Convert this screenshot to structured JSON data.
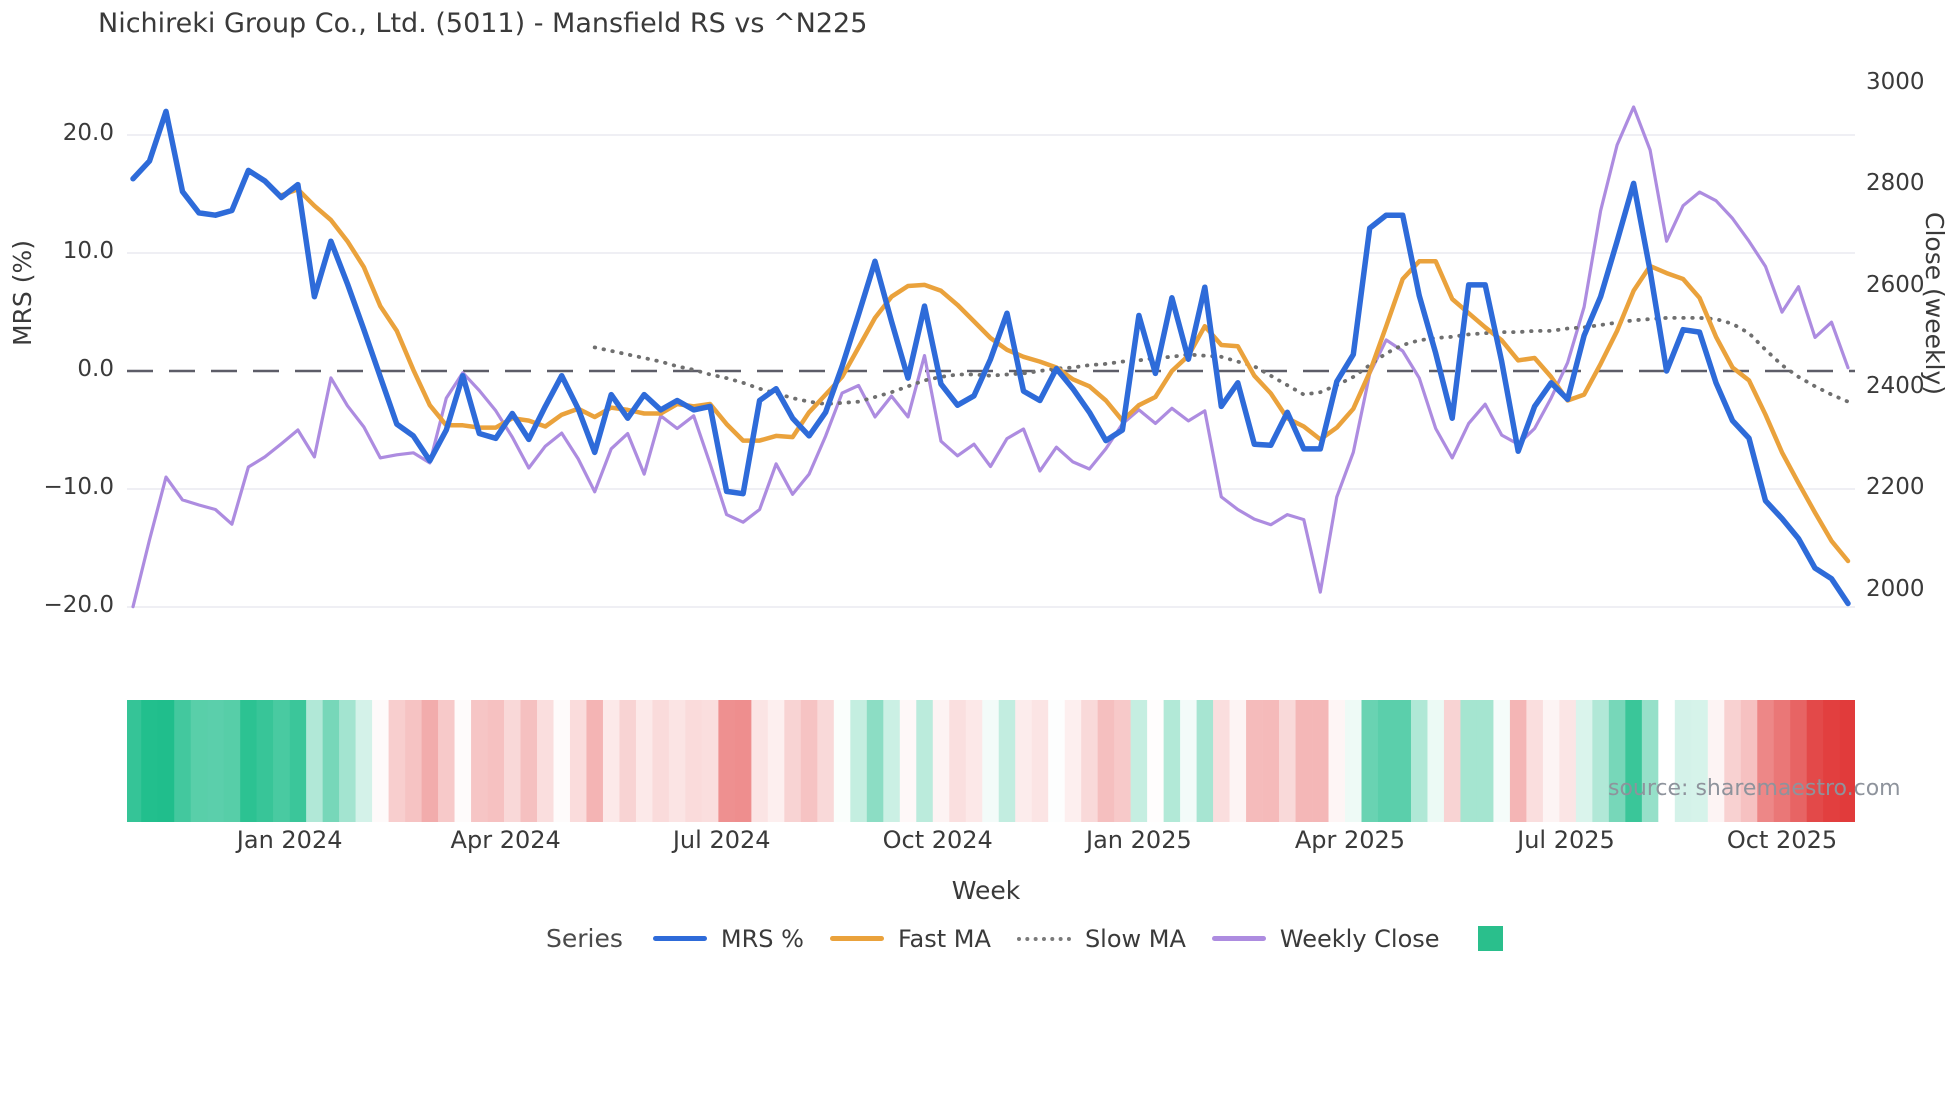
{
  "source_note": "source: sharemaestro.com",
  "legend": {
    "title": "Series",
    "items": [
      {
        "label": "MRS %",
        "swatch": "line",
        "color": "#2e6bd9"
      },
      {
        "label": "Fast MA",
        "swatch": "line",
        "color": "#eaa23c"
      },
      {
        "label": "Slow MA",
        "swatch": "dotted",
        "color": "#7a7a7a"
      },
      {
        "label": "Weekly Close",
        "swatch": "line",
        "color": "#ad8ce0"
      },
      {
        "label": "",
        "swatch": "square",
        "color": "#2abf8c"
      }
    ]
  },
  "chart_data": {
    "type": "line",
    "title": "Nichireki Group Co., Ltd. (5011) - Mansfield RS vs ^N225",
    "x_axis": {
      "label": "Week",
      "ticks": [
        {
          "label": "Jan 2024",
          "week": 9.5
        },
        {
          "label": "Apr 2024",
          "week": 22.6
        },
        {
          "label": "Jul 2024",
          "week": 35.7
        },
        {
          "label": "Oct 2024",
          "week": 48.8
        },
        {
          "label": "Jan 2025",
          "week": 61.0
        },
        {
          "label": "Apr 2025",
          "week": 73.8
        },
        {
          "label": "Jul 2025",
          "week": 86.9
        },
        {
          "label": "Oct 2025",
          "week": 100.0
        }
      ],
      "weeks_total": 105
    },
    "y_left": {
      "label": "MRS (%)",
      "ticks": [
        {
          "label": "20.0",
          "value": 20
        },
        {
          "label": "10.0",
          "value": 10
        },
        {
          "label": "0.0",
          "value": 0
        },
        {
          "label": "−10.0",
          "value": -10
        },
        {
          "label": "−20.0",
          "value": -20
        }
      ],
      "grid_values": [
        20,
        10,
        -10,
        -20
      ],
      "zero_line": 0.0
    },
    "y_right": {
      "label": "Close (weekly)",
      "ticks": [
        {
          "label": "3000",
          "value": 3000
        },
        {
          "label": "2800",
          "value": 2800
        },
        {
          "label": "2600",
          "value": 2600
        },
        {
          "label": "2400",
          "value": 2400
        },
        {
          "label": "2200",
          "value": 2200
        },
        {
          "label": "2000",
          "value": 2000
        }
      ]
    },
    "series": [
      {
        "name": "MRS %",
        "axis": "left",
        "color": "#2e6bd9",
        "style": "solid",
        "width": 5.5,
        "z": 4,
        "start_week": 0,
        "values": [
          16.3,
          17.8,
          22,
          15.2,
          13.4,
          13.2,
          13.6,
          17,
          16.1,
          14.7,
          15.8,
          6.3,
          11,
          7.4,
          3.5,
          -0.5,
          -4.5,
          -5.5,
          -7.6,
          -5,
          -0.4,
          -5.3,
          -5.7,
          -3.6,
          -5.8,
          -3,
          -0.4,
          -3.2,
          -6.9,
          -2,
          -4,
          -2,
          -3.3,
          -2.5,
          -3.3,
          -3,
          -10.2,
          -10.4,
          -2.5,
          -1.5,
          -4,
          -5.5,
          -3.5,
          0.4,
          4.8,
          9.3,
          4.2,
          -0.6,
          5.5,
          -1.1,
          -2.9,
          -2.1,
          1,
          4.9,
          -1.7,
          -2.5,
          0.2,
          -1.5,
          -3.5,
          -5.9,
          -5,
          4.7,
          -0.2,
          6.2,
          1,
          7.1,
          -3,
          -1,
          -6.2,
          -6.3,
          -3.5,
          -6.6,
          -6.6,
          -0.9,
          1.4,
          12.1,
          13.2,
          13.2,
          6.4,
          1.5,
          -4,
          7.3,
          7.3,
          0.8,
          -6.8,
          -3,
          -1,
          -2.4,
          3,
          6.3,
          11,
          15.9,
          8.5,
          0,
          3.5,
          3.3,
          -1,
          -4.2,
          -5.7,
          -11,
          -12.5,
          -14.2,
          -16.7,
          -17.6,
          -19.7
        ]
      },
      {
        "name": "Fast MA",
        "axis": "left",
        "color": "#eaa23c",
        "style": "solid",
        "width": 4.5,
        "z": 3,
        "start_week": 9,
        "values": [
          14.9,
          15.4,
          14,
          12.8,
          11,
          8.8,
          5.5,
          3.4,
          0.1,
          -2.9,
          -4.6,
          -4.6,
          -4.8,
          -4.8,
          -4,
          -4.2,
          -4.7,
          -3.7,
          -3.2,
          -3.9,
          -3.1,
          -3.3,
          -3.6,
          -3.6,
          -2.8,
          -3,
          -2.8,
          -4.5,
          -5.9,
          -5.9,
          -5.5,
          -5.6,
          -3.5,
          -2,
          -0.5,
          2,
          4.5,
          6.3,
          7.2,
          7.3,
          6.8,
          5.6,
          4.2,
          2.8,
          1.8,
          1.2,
          0.8,
          0.3,
          -0.7,
          -1.3,
          -2.5,
          -4.2,
          -2.9,
          -2.2,
          0,
          1.3,
          3.8,
          2.2,
          2.1,
          -0.4,
          -1.9,
          -4,
          -4.7,
          -5.8,
          -4.8,
          -3.2,
          -0.1,
          3.8,
          7.8,
          9.3,
          9.3,
          6.1,
          4.9,
          3.7,
          2.6,
          0.9,
          1.1,
          -0.5,
          -2.5,
          -2,
          0.6,
          3.4,
          6.8,
          8.9,
          8.3,
          7.8,
          6.2,
          2.9,
          0.3,
          -0.8,
          -3.7,
          -6.9,
          -9.5,
          -12,
          -14.4,
          -16.1
        ]
      },
      {
        "name": "Slow MA",
        "axis": "left",
        "color": "#6f6f6f",
        "style": "dotted",
        "width": 3.8,
        "z": 2,
        "start_week": 28,
        "values": [
          2,
          1.7,
          1.4,
          1.1,
          0.8,
          0.4,
          0.1,
          -0.3,
          -0.6,
          -1,
          -1.5,
          -1.9,
          -2.3,
          -2.6,
          -2.8,
          -2.7,
          -2.6,
          -2.2,
          -1.8,
          -1.3,
          -0.8,
          -0.5,
          -0.3,
          -0.3,
          -0.4,
          -0.3,
          -0.2,
          0,
          0.2,
          0.3,
          0.5,
          0.6,
          0.8,
          0.9,
          1.1,
          1.2,
          1.4,
          1.3,
          1.2,
          0.8,
          0.4,
          -0.4,
          -1.2,
          -2,
          -1.8,
          -1.2,
          -0.5,
          0.5,
          1.5,
          2.2,
          2.6,
          2.8,
          2.9,
          3.1,
          3.2,
          3.3,
          3.3,
          3.4,
          3.4,
          3.6,
          3.7,
          3.9,
          4.1,
          4.3,
          4.4,
          4.5,
          4.5,
          4.5,
          4.4,
          4,
          3.2,
          1.8,
          0.5,
          -0.5,
          -1.3,
          -2,
          -2.6
        ]
      },
      {
        "name": "Weekly Close",
        "axis": "right",
        "color": "#ad8ce0",
        "style": "solid",
        "width": 3.2,
        "z": 1,
        "start_week": 0,
        "values": [
          1968,
          2100,
          2224,
          2179,
          2169,
          2160,
          2131,
          2244,
          2264,
          2290,
          2317,
          2264,
          2420,
          2365,
          2323,
          2262,
          2268,
          2272,
          2252,
          2380,
          2430,
          2395,
          2355,
          2303,
          2242,
          2285,
          2311,
          2260,
          2195,
          2280,
          2310,
          2230,
          2345,
          2320,
          2345,
          2250,
          2150,
          2135,
          2160,
          2250,
          2190,
          2230,
          2305,
          2390,
          2405,
          2343,
          2384,
          2343,
          2464,
          2295,
          2266,
          2289,
          2245,
          2300,
          2319,
          2236,
          2283,
          2254,
          2240,
          2280,
          2329,
          2357,
          2330,
          2360,
          2335,
          2355,
          2185,
          2160,
          2141,
          2130,
          2150,
          2140,
          1997,
          2185,
          2273,
          2428,
          2495,
          2473,
          2420,
          2320,
          2262,
          2330,
          2368,
          2307,
          2289,
          2320,
          2380,
          2450,
          2560,
          2750,
          2880,
          2955,
          2870,
          2690,
          2760,
          2787,
          2770,
          2735,
          2690,
          2640,
          2550,
          2600,
          2500,
          2530,
          2440
        ]
      }
    ],
    "heatmap": {
      "encodes": "MRS %",
      "positive_color": "#20be8c",
      "negative_color": "#e13b3b",
      "max_abs": 18
    }
  }
}
